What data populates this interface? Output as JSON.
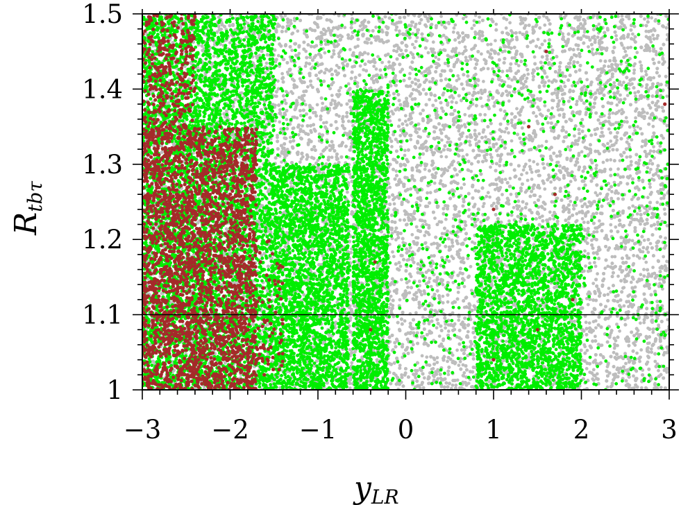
{
  "chart_data": {
    "type": "scatter",
    "title": "",
    "xlabel": {
      "main": "y",
      "sub": "LR"
    },
    "ylabel": {
      "main": "R",
      "sub": "tbτ"
    },
    "xlim": [
      -3,
      3
    ],
    "ylim": [
      1.0,
      1.5
    ],
    "x_ticks": [
      -3,
      -2,
      -1,
      0,
      1,
      2,
      3
    ],
    "x_tick_labels": [
      "−3",
      "−2",
      "−1",
      "0",
      "1",
      "2",
      "3"
    ],
    "y_ticks": [
      1.0,
      1.1,
      1.2,
      1.3,
      1.4,
      1.5
    ],
    "y_tick_labels": [
      "1",
      "1.1",
      "1.2",
      "1.3",
      "1.4",
      "1.5"
    ],
    "reference_line_y": 1.1,
    "grid": false,
    "legend": "none",
    "series": [
      {
        "color": "#bdbdbd",
        "description_regions": [
          {
            "x": [
              -3.0,
              3.0
            ],
            "y": [
              1.0,
              1.5
            ],
            "density": 0.9
          }
        ],
        "points": [
          [
            -2.5,
            1.02
          ],
          [
            -1.0,
            1.05
          ],
          [
            0.2,
            1.03
          ],
          [
            0.5,
            1.1
          ],
          [
            1.0,
            1.2
          ],
          [
            1.5,
            1.3
          ],
          [
            2.0,
            1.4
          ],
          [
            2.5,
            1.45
          ],
          [
            2.8,
            1.05
          ],
          [
            0.3,
            1.45
          ],
          [
            -0.3,
            1.4
          ],
          [
            2.3,
            1.2
          ]
        ]
      },
      {
        "color": "#00ee00",
        "description_regions": [
          {
            "x": [
              -3.0,
              -1.5
            ],
            "y": [
              1.0,
              1.5
            ],
            "density": 0.95
          },
          {
            "x": [
              -1.5,
              -0.65
            ],
            "y": [
              1.0,
              1.3
            ],
            "density": 0.8
          },
          {
            "x": [
              -0.6,
              -0.2
            ],
            "y": [
              1.0,
              1.4
            ],
            "density": 0.9
          },
          {
            "x": [
              0.8,
              2.0
            ],
            "y": [
              1.0,
              1.22
            ],
            "density": 0.75
          },
          {
            "x": [
              -1.5,
              3.0
            ],
            "y": [
              1.0,
              1.5
            ],
            "density": 0.05
          }
        ],
        "points": [
          [
            -2.0,
            1.3
          ],
          [
            -1.2,
            1.15
          ],
          [
            -0.4,
            1.2
          ],
          [
            1.2,
            1.1
          ],
          [
            1.6,
            1.05
          ],
          [
            0.5,
            1.35
          ],
          [
            2.2,
            1.25
          ]
        ]
      },
      {
        "color": "#a52a2a",
        "description_regions": [
          {
            "x": [
              -3.0,
              -1.7
            ],
            "y": [
              1.0,
              1.35
            ],
            "density": 0.55
          },
          {
            "x": [
              -3.0,
              -2.4
            ],
            "y": [
              1.35,
              1.5
            ],
            "density": 0.3
          },
          {
            "x": [
              -1.7,
              -1.4
            ],
            "y": [
              1.02,
              1.2
            ],
            "density": 0.1
          }
        ],
        "points": [
          [
            -2.6,
            1.12
          ],
          [
            -2.3,
            1.18
          ],
          [
            -2.8,
            1.05
          ],
          [
            -2.2,
            1.25
          ],
          [
            -0.4,
            1.08
          ],
          [
            -0.35,
            1.17
          ],
          [
            1.0,
            1.04
          ],
          [
            1.5,
            1.08
          ],
          [
            1.6,
            1.45
          ],
          [
            2.95,
            1.38
          ],
          [
            1.4,
            1.35
          ],
          [
            1.9,
            1.12
          ],
          [
            1.0,
            1.24
          ],
          [
            1.7,
            1.26
          ]
        ]
      }
    ]
  }
}
